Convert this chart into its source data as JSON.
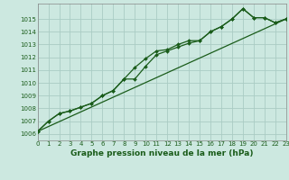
{
  "title": "Graphe pression niveau de la mer (hPa)",
  "bg_color": "#cce8e0",
  "grid_color": "#aaccc4",
  "line_color": "#1a5c1a",
  "spine_color": "#888888",
  "x_min": 0,
  "x_max": 23,
  "y_min": 1005.5,
  "y_max": 1016.2,
  "line1_x": [
    0,
    1,
    2,
    3,
    4,
    5,
    6,
    7,
    8,
    9,
    10,
    11,
    12,
    13,
    14,
    15,
    16,
    17,
    18,
    19,
    20,
    21,
    22,
    23
  ],
  "line1_y": [
    1006.2,
    1007.0,
    1007.6,
    1007.8,
    1008.1,
    1008.4,
    1009.0,
    1009.4,
    1010.3,
    1011.2,
    1011.9,
    1012.5,
    1012.6,
    1013.0,
    1013.3,
    1013.3,
    1014.0,
    1014.4,
    1015.0,
    1015.8,
    1015.1,
    1015.1,
    1014.7,
    1015.0
  ],
  "line2_x": [
    0,
    1,
    2,
    3,
    4,
    5,
    6,
    7,
    8,
    9,
    10,
    11,
    12,
    13,
    14,
    15,
    16,
    17,
    18,
    19,
    20,
    21,
    22,
    23
  ],
  "line2_y": [
    1006.2,
    1007.0,
    1007.6,
    1007.8,
    1008.1,
    1008.4,
    1009.0,
    1009.4,
    1010.3,
    1010.3,
    1011.3,
    1012.2,
    1012.5,
    1012.8,
    1013.1,
    1013.3,
    1014.0,
    1014.4,
    1015.0,
    1015.8,
    1015.1,
    1015.1,
    1014.7,
    1015.0
  ],
  "line3_x": [
    0,
    23
  ],
  "line3_y": [
    1006.2,
    1015.0
  ],
  "yticks": [
    1006,
    1007,
    1008,
    1009,
    1010,
    1011,
    1012,
    1013,
    1014,
    1015
  ],
  "xticks": [
    0,
    1,
    2,
    3,
    4,
    5,
    6,
    7,
    8,
    9,
    10,
    11,
    12,
    13,
    14,
    15,
    16,
    17,
    18,
    19,
    20,
    21,
    22,
    23
  ],
  "ylabel_fontsize": 5.0,
  "xlabel_fontsize": 6.5,
  "tick_fontsize": 5.0,
  "linewidth": 0.9,
  "markersize": 2.0
}
